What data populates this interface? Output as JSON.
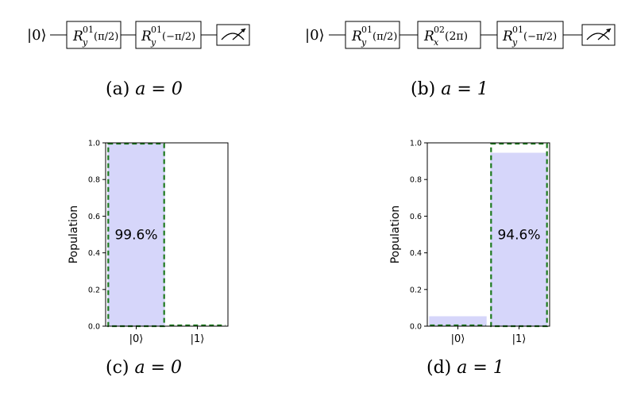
{
  "circuits": [
    {
      "input": "|0⟩",
      "gates": [
        {
          "base": "R",
          "sup": "01",
          "sub": "y",
          "arg": "(π/2)"
        },
        {
          "base": "R",
          "sup": "01",
          "sub": "y",
          "arg": "(−π/2)"
        }
      ],
      "caption_label": "(a)",
      "caption_eq": "a = 0"
    },
    {
      "input": "|0⟩",
      "gates": [
        {
          "base": "R",
          "sup": "01",
          "sub": "y",
          "arg": "(π/2)"
        },
        {
          "base": "R",
          "sup": "02",
          "sub": "x",
          "arg": "(2π)"
        },
        {
          "base": "R",
          "sup": "01",
          "sub": "y",
          "arg": "(−π/2)"
        }
      ],
      "caption_label": "(b)",
      "caption_eq": "a = 1"
    }
  ],
  "chart_data": [
    {
      "type": "bar",
      "categories": [
        "|0⟩",
        "|1⟩"
      ],
      "values": [
        0.996,
        0.0
      ],
      "expected": [
        1.0,
        0.0
      ],
      "bar_label": "99.6%",
      "ylabel": "Population",
      "ylim": [
        0,
        1.0
      ],
      "yticks": [
        "0.0",
        "0.2",
        "0.4",
        "0.6",
        "0.8",
        "1.0"
      ],
      "caption_label": "(c)",
      "caption_eq": "a = 0",
      "colors": {
        "bar": "#d6d6fa",
        "expected": "#1e7a1e"
      }
    },
    {
      "type": "bar",
      "categories": [
        "|0⟩",
        "|1⟩"
      ],
      "values": [
        0.054,
        0.946
      ],
      "expected": [
        0.0,
        1.0
      ],
      "bar_label": "94.6%",
      "ylabel": "Population",
      "ylim": [
        0,
        1.0
      ],
      "yticks": [
        "0.0",
        "0.2",
        "0.4",
        "0.6",
        "0.8",
        "1.0"
      ],
      "caption_label": "(d)",
      "caption_eq": "a = 1",
      "colors": {
        "bar": "#d6d6fa",
        "expected": "#1e7a1e"
      }
    }
  ]
}
